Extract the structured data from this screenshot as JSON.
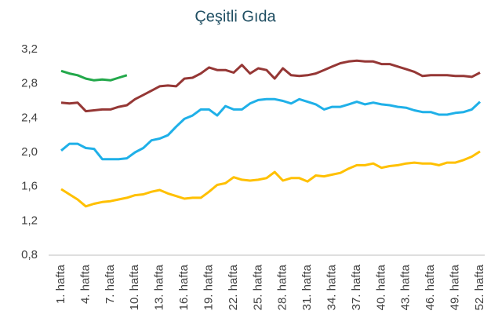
{
  "chart_data": {
    "type": "line",
    "title": "Çeşitli Gıda",
    "categories": [
      "1. hafta",
      null,
      null,
      "4. hafta",
      null,
      null,
      "7. hafta",
      null,
      null,
      "10. hafta",
      null,
      null,
      "13. hafta",
      null,
      null,
      "16. hafta",
      null,
      null,
      "19. hafta",
      null,
      null,
      "22. hafta",
      null,
      null,
      "25. hafta",
      null,
      null,
      "28. hafta",
      null,
      null,
      "31. hafta",
      null,
      null,
      "34. hafta",
      null,
      null,
      "37. hafta",
      null,
      null,
      "40. hafta",
      null,
      null,
      "43. hafta",
      null,
      null,
      "46. hafta",
      null,
      null,
      "49. hafta",
      null,
      null,
      "52. hafta"
    ],
    "series": [
      {
        "color": "#22a84a",
        "values": [
          2.95,
          2.92,
          2.9,
          2.86,
          2.84,
          2.85,
          2.84,
          2.87,
          2.9,
          null,
          null,
          null,
          null,
          null,
          null,
          null,
          null,
          null,
          null,
          null,
          null,
          null,
          null,
          null,
          null,
          null,
          null,
          null,
          null,
          null,
          null,
          null,
          null,
          null,
          null,
          null,
          null,
          null,
          null,
          null,
          null,
          null,
          null,
          null,
          null,
          null,
          null,
          null,
          null,
          null,
          null,
          null
        ]
      },
      {
        "color": "#953735",
        "values": [
          2.58,
          2.57,
          2.58,
          2.48,
          2.49,
          2.5,
          2.5,
          2.53,
          2.55,
          2.62,
          2.67,
          2.72,
          2.77,
          2.78,
          2.77,
          2.86,
          2.87,
          2.92,
          2.99,
          2.96,
          2.96,
          2.93,
          3.02,
          2.92,
          2.98,
          2.96,
          2.86,
          2.98,
          2.9,
          2.89,
          2.9,
          2.92,
          2.96,
          3.0,
          3.04,
          3.06,
          3.07,
          3.06,
          3.06,
          3.03,
          3.03,
          3.0,
          2.97,
          2.94,
          2.89,
          2.9,
          2.9,
          2.9,
          2.89,
          2.89,
          2.88,
          2.93
        ]
      },
      {
        "color": "#1fb0e8",
        "values": [
          2.02,
          2.1,
          2.1,
          2.05,
          2.04,
          1.92,
          1.92,
          1.92,
          1.93,
          2.0,
          2.05,
          2.14,
          2.16,
          2.2,
          2.3,
          2.39,
          2.43,
          2.5,
          2.5,
          2.43,
          2.54,
          2.5,
          2.5,
          2.57,
          2.61,
          2.62,
          2.62,
          2.6,
          2.57,
          2.62,
          2.59,
          2.56,
          2.5,
          2.53,
          2.53,
          2.56,
          2.59,
          2.56,
          2.58,
          2.56,
          2.55,
          2.53,
          2.52,
          2.49,
          2.47,
          2.47,
          2.44,
          2.44,
          2.46,
          2.47,
          2.5,
          2.59
        ]
      },
      {
        "color": "#ffc000",
        "values": [
          1.57,
          1.51,
          1.45,
          1.37,
          1.4,
          1.42,
          1.43,
          1.45,
          1.47,
          1.5,
          1.51,
          1.54,
          1.56,
          1.52,
          1.49,
          1.46,
          1.47,
          1.47,
          1.54,
          1.62,
          1.64,
          1.71,
          1.68,
          1.67,
          1.68,
          1.7,
          1.77,
          1.67,
          1.7,
          1.7,
          1.66,
          1.73,
          1.72,
          1.74,
          1.76,
          1.81,
          1.85,
          1.85,
          1.87,
          1.82,
          1.84,
          1.85,
          1.87,
          1.88,
          1.87,
          1.87,
          1.85,
          1.88,
          1.88,
          1.91,
          1.95,
          2.01
        ]
      }
    ],
    "ylim": [
      0.8,
      3.2
    ],
    "yticks": [
      {
        "value": 0.8,
        "label": "0,8"
      },
      {
        "value": 1.2,
        "label": "1,2"
      },
      {
        "value": 1.6,
        "label": "1,6"
      },
      {
        "value": 2.0,
        "label": "2,0"
      },
      {
        "value": 2.4,
        "label": "2,4"
      },
      {
        "value": 2.8,
        "label": "2,8"
      },
      {
        "value": 3.2,
        "label": "3,2"
      }
    ],
    "grid": false
  }
}
